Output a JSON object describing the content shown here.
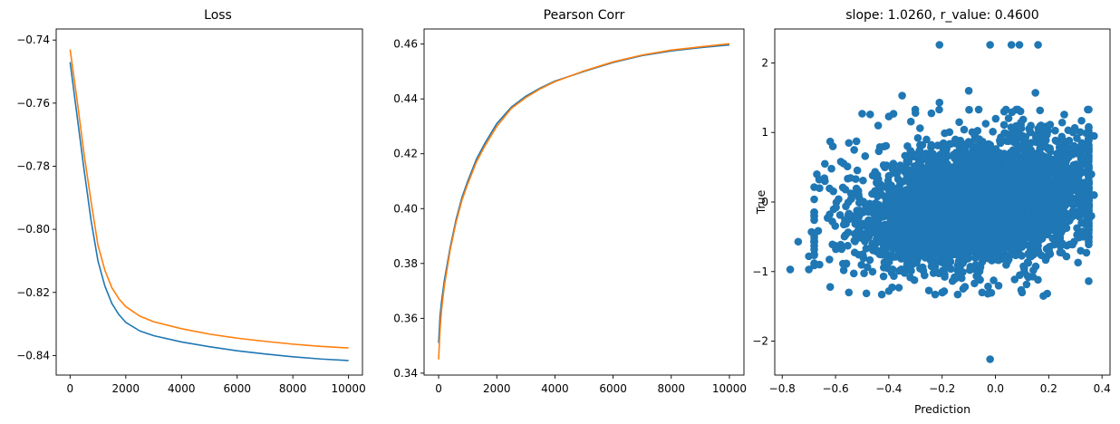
{
  "chart_data": [
    {
      "type": "line",
      "title": "Loss",
      "xlabel": "",
      "ylabel": "",
      "xlim": [
        -500,
        10500
      ],
      "ylim": [
        -0.8462,
        -0.7365
      ],
      "xticks": [
        0,
        2000,
        4000,
        6000,
        8000,
        10000
      ],
      "xtick_labels": [
        "0",
        "2000",
        "4000",
        "6000",
        "8000",
        "10000"
      ],
      "yticks": [
        -0.84,
        -0.82,
        -0.8,
        -0.78,
        -0.76,
        -0.74
      ],
      "ytick_labels": [
        "−0.84",
        "−0.82",
        "−0.80",
        "−0.78",
        "−0.76",
        "−0.74"
      ],
      "grid": false,
      "series": [
        {
          "color": "#1f77b4",
          "x": [
            0,
            250,
            500,
            750,
            1000,
            1250,
            1500,
            1750,
            2000,
            2500,
            3000,
            4000,
            5000,
            6000,
            7000,
            8000,
            9000,
            10000
          ],
          "y": [
            -0.747,
            -0.764,
            -0.781,
            -0.797,
            -0.81,
            -0.818,
            -0.8235,
            -0.827,
            -0.8295,
            -0.8322,
            -0.8337,
            -0.8357,
            -0.8372,
            -0.8385,
            -0.8395,
            -0.8404,
            -0.8411,
            -0.8416
          ]
        },
        {
          "color": "#ff7f0e",
          "x": [
            0,
            250,
            500,
            750,
            1000,
            1250,
            1500,
            1750,
            2000,
            2500,
            3000,
            4000,
            5000,
            6000,
            7000,
            8000,
            9000,
            10000
          ],
          "y": [
            -0.743,
            -0.759,
            -0.776,
            -0.791,
            -0.805,
            -0.813,
            -0.8185,
            -0.822,
            -0.8245,
            -0.8275,
            -0.8293,
            -0.8315,
            -0.8332,
            -0.8345,
            -0.8355,
            -0.8364,
            -0.8371,
            -0.8376
          ]
        }
      ]
    },
    {
      "type": "line",
      "title": "Pearson Corr",
      "xlabel": "",
      "ylabel": "",
      "xlim": [
        -500,
        10500
      ],
      "ylim": [
        0.3393,
        0.4655
      ],
      "xticks": [
        0,
        2000,
        4000,
        6000,
        8000,
        10000
      ],
      "xtick_labels": [
        "0",
        "2000",
        "4000",
        "6000",
        "8000",
        "10000"
      ],
      "yticks": [
        0.34,
        0.36,
        0.38,
        0.4,
        0.42,
        0.44,
        0.46
      ],
      "ytick_labels": [
        "0.34",
        "0.36",
        "0.38",
        "0.40",
        "0.42",
        "0.44",
        "0.46"
      ],
      "grid": false,
      "series": [
        {
          "color": "#1f77b4",
          "x": [
            0,
            50,
            100,
            200,
            400,
            600,
            800,
            1000,
            1300,
            1600,
            2000,
            2500,
            3000,
            3500,
            4000,
            5000,
            6000,
            7000,
            8000,
            9000,
            10000
          ],
          "y": [
            0.351,
            0.361,
            0.366,
            0.374,
            0.386,
            0.396,
            0.404,
            0.41,
            0.418,
            0.424,
            0.431,
            0.437,
            0.441,
            0.444,
            0.4465,
            0.45,
            0.4533,
            0.4558,
            0.4575,
            0.4587,
            0.4597
          ]
        },
        {
          "color": "#ff7f0e",
          "x": [
            0,
            50,
            100,
            200,
            400,
            600,
            800,
            1000,
            1300,
            1600,
            2000,
            2500,
            3000,
            3500,
            4000,
            5000,
            6000,
            7000,
            8000,
            9000,
            10000
          ],
          "y": [
            0.345,
            0.356,
            0.363,
            0.372,
            0.385,
            0.395,
            0.403,
            0.409,
            0.417,
            0.423,
            0.43,
            0.4365,
            0.4405,
            0.4437,
            0.4463,
            0.4502,
            0.4535,
            0.456,
            0.4578,
            0.459,
            0.4601
          ]
        }
      ]
    },
    {
      "type": "scatter",
      "title": "slope: 1.0260, r_value: 0.4600",
      "xlabel": "Prediction",
      "ylabel": "True",
      "xlim": [
        -0.828,
        0.43
      ],
      "ylim": [
        -2.488,
        2.488
      ],
      "xticks": [
        -0.8,
        -0.6,
        -0.4,
        -0.2,
        0.0,
        0.2,
        0.4
      ],
      "xtick_labels": [
        "−0.8",
        "−0.6",
        "−0.4",
        "−0.2",
        "0.0",
        "0.2",
        "0.4"
      ],
      "yticks": [
        -2,
        -1,
        0,
        1,
        2
      ],
      "ytick_labels": [
        "−2",
        "−1",
        "0",
        "1",
        "2"
      ],
      "grid": false,
      "color": "#1f77b4",
      "points": [
        [
          -0.21,
          2.26
        ],
        [
          -0.02,
          2.26
        ],
        [
          0.06,
          2.26
        ],
        [
          0.09,
          2.26
        ],
        [
          0.16,
          2.26
        ],
        [
          -0.02,
          -2.26
        ],
        [
          -0.77,
          -0.97
        ],
        [
          -0.7,
          -0.97
        ],
        [
          -0.74,
          -0.57
        ],
        [
          -0.69,
          -0.43
        ],
        [
          -0.35,
          1.53
        ],
        [
          -0.1,
          1.6
        ],
        [
          0.15,
          1.57
        ],
        [
          -0.21,
          1.43
        ],
        [
          -0.3,
          1.28
        ],
        [
          -0.5,
          1.27
        ],
        [
          -0.47,
          1.26
        ],
        [
          -0.44,
          1.1
        ],
        [
          -0.4,
          1.23
        ],
        [
          -0.55,
          0.85
        ],
        [
          -0.61,
          0.8
        ],
        [
          -0.62,
          0.87
        ],
        [
          -0.53,
          0.75
        ],
        [
          -0.64,
          0.55
        ],
        [
          -0.67,
          0.4
        ],
        [
          -0.64,
          0.3
        ],
        [
          -0.66,
          0.2
        ],
        [
          -0.58,
          0.58
        ],
        [
          0.35,
          1.08
        ],
        [
          0.37,
          0.95
        ],
        [
          0.36,
          0.4
        ],
        [
          0.37,
          0.1
        ],
        [
          0.36,
          -0.2
        ],
        [
          0.33,
          -0.5
        ],
        [
          0.32,
          -0.7
        ],
        [
          0.31,
          -0.87
        ],
        [
          0.18,
          -1.35
        ],
        [
          0.1,
          -1.3
        ],
        [
          -0.05,
          -1.3
        ],
        [
          -0.2,
          -1.3
        ],
        [
          -0.4,
          -1.28
        ],
        [
          -0.55,
          -1.3
        ],
        [
          -0.62,
          -1.22
        ],
        [
          -0.66,
          -0.9
        ],
        [
          -0.7,
          -0.78
        ]
      ],
      "dense_cloud": {
        "seed": 7,
        "count": 4200,
        "x_mean": -0.05,
        "x_std": 0.22,
        "x_range": [
          -0.68,
          0.35
        ],
        "slope": 1.026,
        "y_std": 0.42,
        "y_clip": [
          -1.33,
          1.33
        ]
      }
    }
  ]
}
